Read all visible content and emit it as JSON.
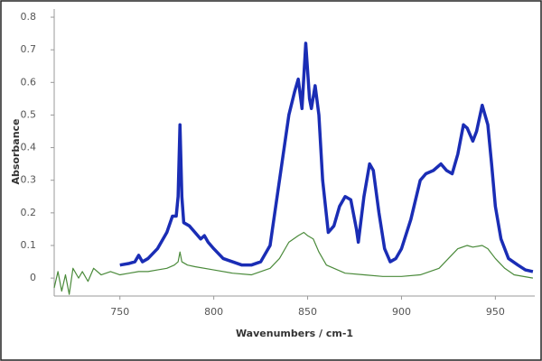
{
  "chart_data": {
    "type": "line",
    "xlabel": "Wavenumbers / cm-1",
    "ylabel": "Absorbance",
    "xlim": [
      715,
      971
    ],
    "ylim": [
      -0.055,
      0.825
    ],
    "xticks": [
      750,
      800,
      850,
      900,
      950
    ],
    "yticks": [
      0,
      0.1,
      0.2,
      0.3,
      0.4,
      0.5,
      0.6,
      0.7,
      0.8
    ],
    "series": [
      {
        "color": "#1a2db5",
        "x": [
          750,
          755,
          758,
          760,
          762,
          765,
          770,
          775,
          778,
          780,
          781,
          782,
          783,
          784,
          787,
          790,
          793,
          795,
          797,
          800,
          805,
          810,
          815,
          820,
          825,
          830,
          835,
          840,
          843,
          845,
          847,
          849,
          851,
          852,
          854,
          856,
          858,
          861,
          864,
          867,
          870,
          873,
          876,
          877,
          880,
          883,
          885,
          888,
          891,
          894,
          897,
          900,
          905,
          910,
          913,
          917,
          921,
          924,
          927,
          930,
          933,
          935,
          938,
          940,
          943,
          946,
          948,
          950,
          953,
          957,
          962,
          966,
          970
        ],
        "values": [
          0.04,
          0.045,
          0.05,
          0.07,
          0.05,
          0.06,
          0.09,
          0.14,
          0.19,
          0.19,
          0.25,
          0.47,
          0.25,
          0.17,
          0.16,
          0.14,
          0.12,
          0.13,
          0.11,
          0.09,
          0.06,
          0.05,
          0.04,
          0.04,
          0.05,
          0.1,
          0.3,
          0.5,
          0.57,
          0.61,
          0.52,
          0.72,
          0.55,
          0.52,
          0.59,
          0.5,
          0.3,
          0.14,
          0.16,
          0.22,
          0.25,
          0.24,
          0.15,
          0.11,
          0.25,
          0.35,
          0.33,
          0.2,
          0.09,
          0.05,
          0.06,
          0.09,
          0.18,
          0.3,
          0.32,
          0.33,
          0.35,
          0.33,
          0.32,
          0.38,
          0.47,
          0.46,
          0.42,
          0.45,
          0.53,
          0.47,
          0.35,
          0.22,
          0.12,
          0.06,
          0.04,
          0.025,
          0.02
        ]
      },
      {
        "color": "#4a8a3a",
        "x": [
          715,
          717,
          719,
          721,
          723,
          725,
          728,
          730,
          733,
          736,
          740,
          745,
          750,
          755,
          760,
          765,
          770,
          775,
          779,
          781,
          782,
          783,
          786,
          790,
          800,
          810,
          820,
          830,
          835,
          840,
          845,
          848,
          850,
          853,
          856,
          860,
          870,
          880,
          890,
          900,
          910,
          920,
          925,
          930,
          935,
          938,
          943,
          946,
          950,
          955,
          960,
          970
        ],
        "values": [
          -0.03,
          0.02,
          -0.04,
          0.01,
          -0.05,
          0.03,
          0.0,
          0.02,
          -0.01,
          0.03,
          0.01,
          0.02,
          0.01,
          0.015,
          0.02,
          0.02,
          0.025,
          0.03,
          0.04,
          0.05,
          0.08,
          0.05,
          0.04,
          0.035,
          0.025,
          0.015,
          0.01,
          0.03,
          0.06,
          0.11,
          0.13,
          0.14,
          0.13,
          0.12,
          0.08,
          0.04,
          0.015,
          0.01,
          0.005,
          0.005,
          0.01,
          0.03,
          0.06,
          0.09,
          0.1,
          0.095,
          0.1,
          0.09,
          0.06,
          0.03,
          0.01,
          0.0
        ]
      }
    ]
  }
}
